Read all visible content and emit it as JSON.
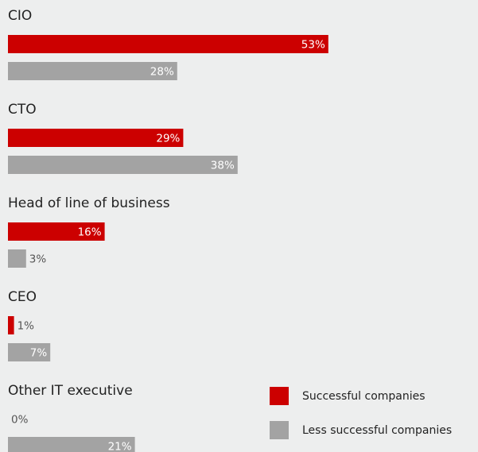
{
  "chart_data": {
    "type": "bar",
    "orientation": "horizontal",
    "categories": [
      "CIO",
      "CTO",
      "Head of line of business",
      "CEO",
      "Other IT executive"
    ],
    "series": [
      {
        "name": "Successful companies",
        "color": "#cc0000",
        "values": [
          53,
          29,
          16,
          1,
          0
        ],
        "value_labels": [
          "53%",
          "29%",
          "16%",
          "1%",
          "0%"
        ]
      },
      {
        "name": "Less successful companies",
        "color": "#a3a3a3",
        "values": [
          28,
          38,
          3,
          7,
          21
        ],
        "value_labels": [
          "28%",
          "38%",
          "3%",
          "7%",
          "21%"
        ]
      }
    ],
    "legend": "bottom-right"
  }
}
